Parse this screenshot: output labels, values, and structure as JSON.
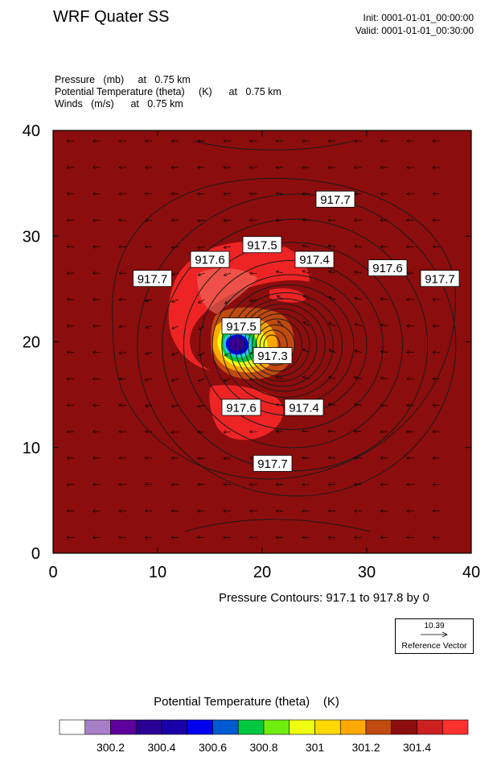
{
  "header": {
    "title": "WRF Quater SS",
    "init": "Init: 0001-01-01_00:00:00",
    "valid": "Valid: 0001-01-01_00:30:00"
  },
  "fields": {
    "line1": "Pressure   (mb)     at   0.75 km",
    "line2": "Potential Temperature (theta)     (K)      at   0.75 km",
    "line3": "Winds   (m/s)      at   0.75 km"
  },
  "contour_info": "Pressure Contours: 917.1 to 917.8 by 0",
  "reference_vector": {
    "value": "10.39",
    "label": "Reference Vector"
  },
  "colorbar": {
    "title": "Potential Temperature (theta)    (K)",
    "colors": [
      "#ffffff",
      "#a77fc9",
      "#5d009c",
      "#2a0094",
      "#1a00a8",
      "#0000ee",
      "#005ad2",
      "#00c840",
      "#70ee10",
      "#eeff10",
      "#ffd800",
      "#ffa800",
      "#c04a10",
      "#8c0d0d",
      "#cc2020",
      "#ff3030"
    ],
    "tick_labels": [
      "300.2",
      "300.4",
      "300.6",
      "300.8",
      "301",
      "301.2",
      "301.4"
    ]
  },
  "chart_data": {
    "type": "contour",
    "x_ticks": [
      "0",
      "10",
      "20",
      "30",
      "40"
    ],
    "y_ticks": [
      "0",
      "10",
      "20",
      "30",
      "40"
    ],
    "xlim": [
      0,
      40
    ],
    "ylim": [
      0,
      40
    ],
    "background_color": "#8c0d0d",
    "contour_labels": [
      {
        "text": "917.7",
        "x": 27.0,
        "y": 33.5
      },
      {
        "text": "917.5",
        "x": 20.0,
        "y": 29.2
      },
      {
        "text": "917.6",
        "x": 15.0,
        "y": 27.8
      },
      {
        "text": "917.4",
        "x": 25.0,
        "y": 27.8
      },
      {
        "text": "917.6",
        "x": 32.0,
        "y": 27.0
      },
      {
        "text": "917.7",
        "x": 9.5,
        "y": 26.0
      },
      {
        "text": "917.7",
        "x": 37.0,
        "y": 26.0
      },
      {
        "text": "917.5",
        "x": 18.0,
        "y": 21.5
      },
      {
        "text": "917.3",
        "x": 21.0,
        "y": 18.7
      },
      {
        "text": "917.6",
        "x": 18.0,
        "y": 13.8
      },
      {
        "text": "917.4",
        "x": 24.0,
        "y": 13.8
      },
      {
        "text": "917.7",
        "x": 21.0,
        "y": 8.5
      }
    ]
  }
}
